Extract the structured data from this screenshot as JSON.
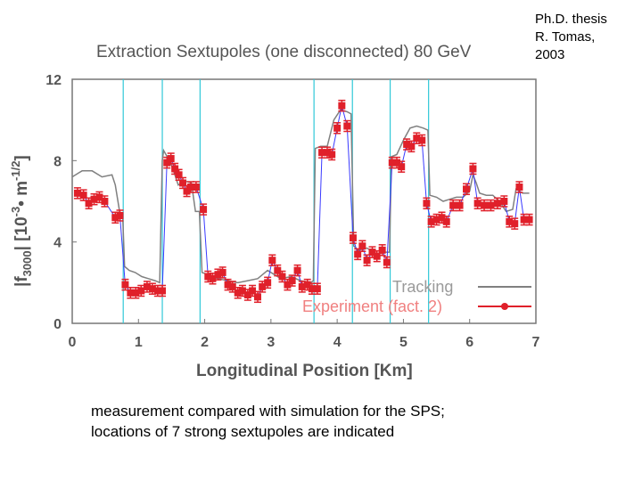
{
  "citation": {
    "line1": "Ph.D. thesis",
    "line2": "R. Tomas,",
    "line3": "2003"
  },
  "caption": {
    "line1": "measurement compared with simulation for the SPS;",
    "line2": "locations of 7 strong sextupoles are indicated"
  },
  "colors": {
    "tracking": "#808080",
    "experiment": "#e0202a",
    "experiment_line": "#3a3aff",
    "sextupole_lines": "#30c8d8",
    "axis": "#777777"
  },
  "chart_data": {
    "type": "line",
    "title": "Extraction Sextupoles (one disconnected) 80 GeV",
    "xlabel": "Longitudinal Position [Km]",
    "ylabel": "|f3000| [10^-3 • m^-1/2]",
    "ylabel_parts": {
      "main": "|f",
      "sub": "3000",
      "mid": "| [10",
      "sup1": "-3",
      "dot": "• m",
      "sup2": "-1/2",
      "end": "]"
    },
    "xlim": [
      0,
      7
    ],
    "ylim": [
      0,
      12
    ],
    "xticks": [
      0,
      1,
      2,
      3,
      4,
      5,
      6,
      7
    ],
    "yticks": [
      0,
      4,
      8,
      12
    ],
    "sextupole_positions": [
      0.77,
      1.36,
      1.93,
      3.65,
      4.23,
      4.8,
      5.38
    ],
    "legend": {
      "tracking": "Tracking",
      "experiment": "Experiment (fact. 2)"
    },
    "series": [
      {
        "name": "Tracking",
        "x": [
          0.0,
          0.1,
          0.15,
          0.3,
          0.45,
          0.6,
          0.65,
          0.72,
          0.76,
          0.79,
          0.86,
          0.95,
          1.05,
          1.15,
          1.25,
          1.32,
          1.36,
          1.38,
          1.45,
          1.52,
          1.6,
          1.7,
          1.8,
          1.86,
          1.92,
          1.96,
          2.05,
          2.2,
          2.35,
          2.5,
          2.65,
          2.8,
          2.95,
          3.05,
          3.15,
          3.3,
          3.45,
          3.6,
          3.64,
          3.67,
          3.75,
          3.85,
          3.95,
          4.05,
          4.15,
          4.21,
          4.25,
          4.32,
          4.45,
          4.6,
          4.72,
          4.79,
          4.82,
          4.9,
          5.0,
          5.1,
          5.2,
          5.3,
          5.37,
          5.4,
          5.5,
          5.6,
          5.7,
          5.8,
          5.9,
          6.0,
          6.05,
          6.1,
          6.15,
          6.25,
          6.35,
          6.45,
          6.55,
          6.65,
          6.7,
          6.8,
          6.9
        ],
        "values": [
          7.2,
          7.4,
          7.5,
          7.5,
          7.2,
          7.3,
          6.8,
          5.4,
          5.4,
          2.8,
          2.6,
          2.5,
          2.3,
          2.2,
          2.1,
          2.0,
          8.0,
          8.5,
          8.1,
          7.6,
          6.8,
          7.0,
          6.9,
          5.5,
          5.5,
          2.5,
          2.4,
          2.2,
          2.1,
          2.0,
          2.1,
          2.2,
          2.6,
          2.4,
          2.2,
          2.3,
          2.1,
          2.0,
          2.1,
          8.6,
          8.7,
          8.7,
          10.0,
          10.5,
          10.4,
          10.3,
          3.8,
          3.6,
          3.7,
          3.4,
          3.5,
          3.5,
          8.2,
          8.3,
          9.0,
          9.6,
          9.7,
          9.6,
          9.5,
          6.3,
          6.2,
          6.0,
          6.1,
          6.2,
          6.2,
          6.5,
          7.3,
          6.9,
          6.4,
          6.3,
          6.3,
          6.0,
          5.5,
          5.6,
          6.6,
          6.4,
          6.4
        ]
      },
      {
        "name": "Experiment (fact. 2)",
        "x": [
          0.08,
          0.17,
          0.25,
          0.33,
          0.41,
          0.49,
          0.65,
          0.72,
          0.8,
          0.88,
          0.96,
          1.04,
          1.13,
          1.21,
          1.29,
          1.36,
          1.43,
          1.49,
          1.55,
          1.61,
          1.67,
          1.73,
          1.79,
          1.87,
          1.98,
          2.05,
          2.12,
          2.2,
          2.27,
          2.35,
          2.42,
          2.5,
          2.57,
          2.65,
          2.72,
          2.8,
          2.87,
          2.95,
          3.02,
          3.1,
          3.17,
          3.25,
          3.32,
          3.4,
          3.47,
          3.55,
          3.62,
          3.7,
          3.77,
          3.85,
          3.92,
          4.0,
          4.07,
          4.15,
          4.24,
          4.31,
          4.38,
          4.45,
          4.53,
          4.6,
          4.68,
          4.75,
          4.83,
          4.9,
          4.97,
          5.05,
          5.12,
          5.2,
          5.28,
          5.35,
          5.42,
          5.5,
          5.58,
          5.65,
          5.75,
          5.85,
          5.95,
          6.05,
          6.12,
          6.22,
          6.32,
          6.42,
          6.52,
          6.6,
          6.68,
          6.75,
          6.82,
          6.9
        ],
        "values": [
          6.4,
          6.3,
          5.9,
          6.1,
          6.2,
          6.0,
          5.2,
          5.3,
          1.9,
          1.5,
          1.5,
          1.6,
          1.8,
          1.7,
          1.6,
          1.6,
          7.9,
          8.1,
          7.6,
          7.3,
          6.9,
          6.5,
          6.7,
          6.7,
          5.6,
          2.3,
          2.2,
          2.4,
          2.5,
          1.9,
          1.8,
          1.5,
          1.6,
          1.4,
          1.6,
          1.3,
          1.8,
          2.0,
          3.1,
          2.6,
          2.3,
          1.9,
          2.1,
          2.6,
          1.8,
          1.9,
          1.7,
          1.7,
          8.4,
          8.4,
          8.3,
          9.6,
          10.7,
          9.7,
          4.2,
          3.4,
          3.8,
          3.1,
          3.5,
          3.3,
          3.6,
          3.0,
          7.9,
          7.9,
          7.7,
          8.8,
          8.7,
          9.1,
          9.0,
          5.9,
          5.0,
          5.1,
          5.2,
          5.0,
          5.8,
          5.8,
          6.6,
          7.6,
          5.9,
          5.8,
          5.8,
          5.9,
          6.0,
          5.0,
          4.9,
          6.7,
          5.1,
          5.1
        ]
      }
    ]
  }
}
